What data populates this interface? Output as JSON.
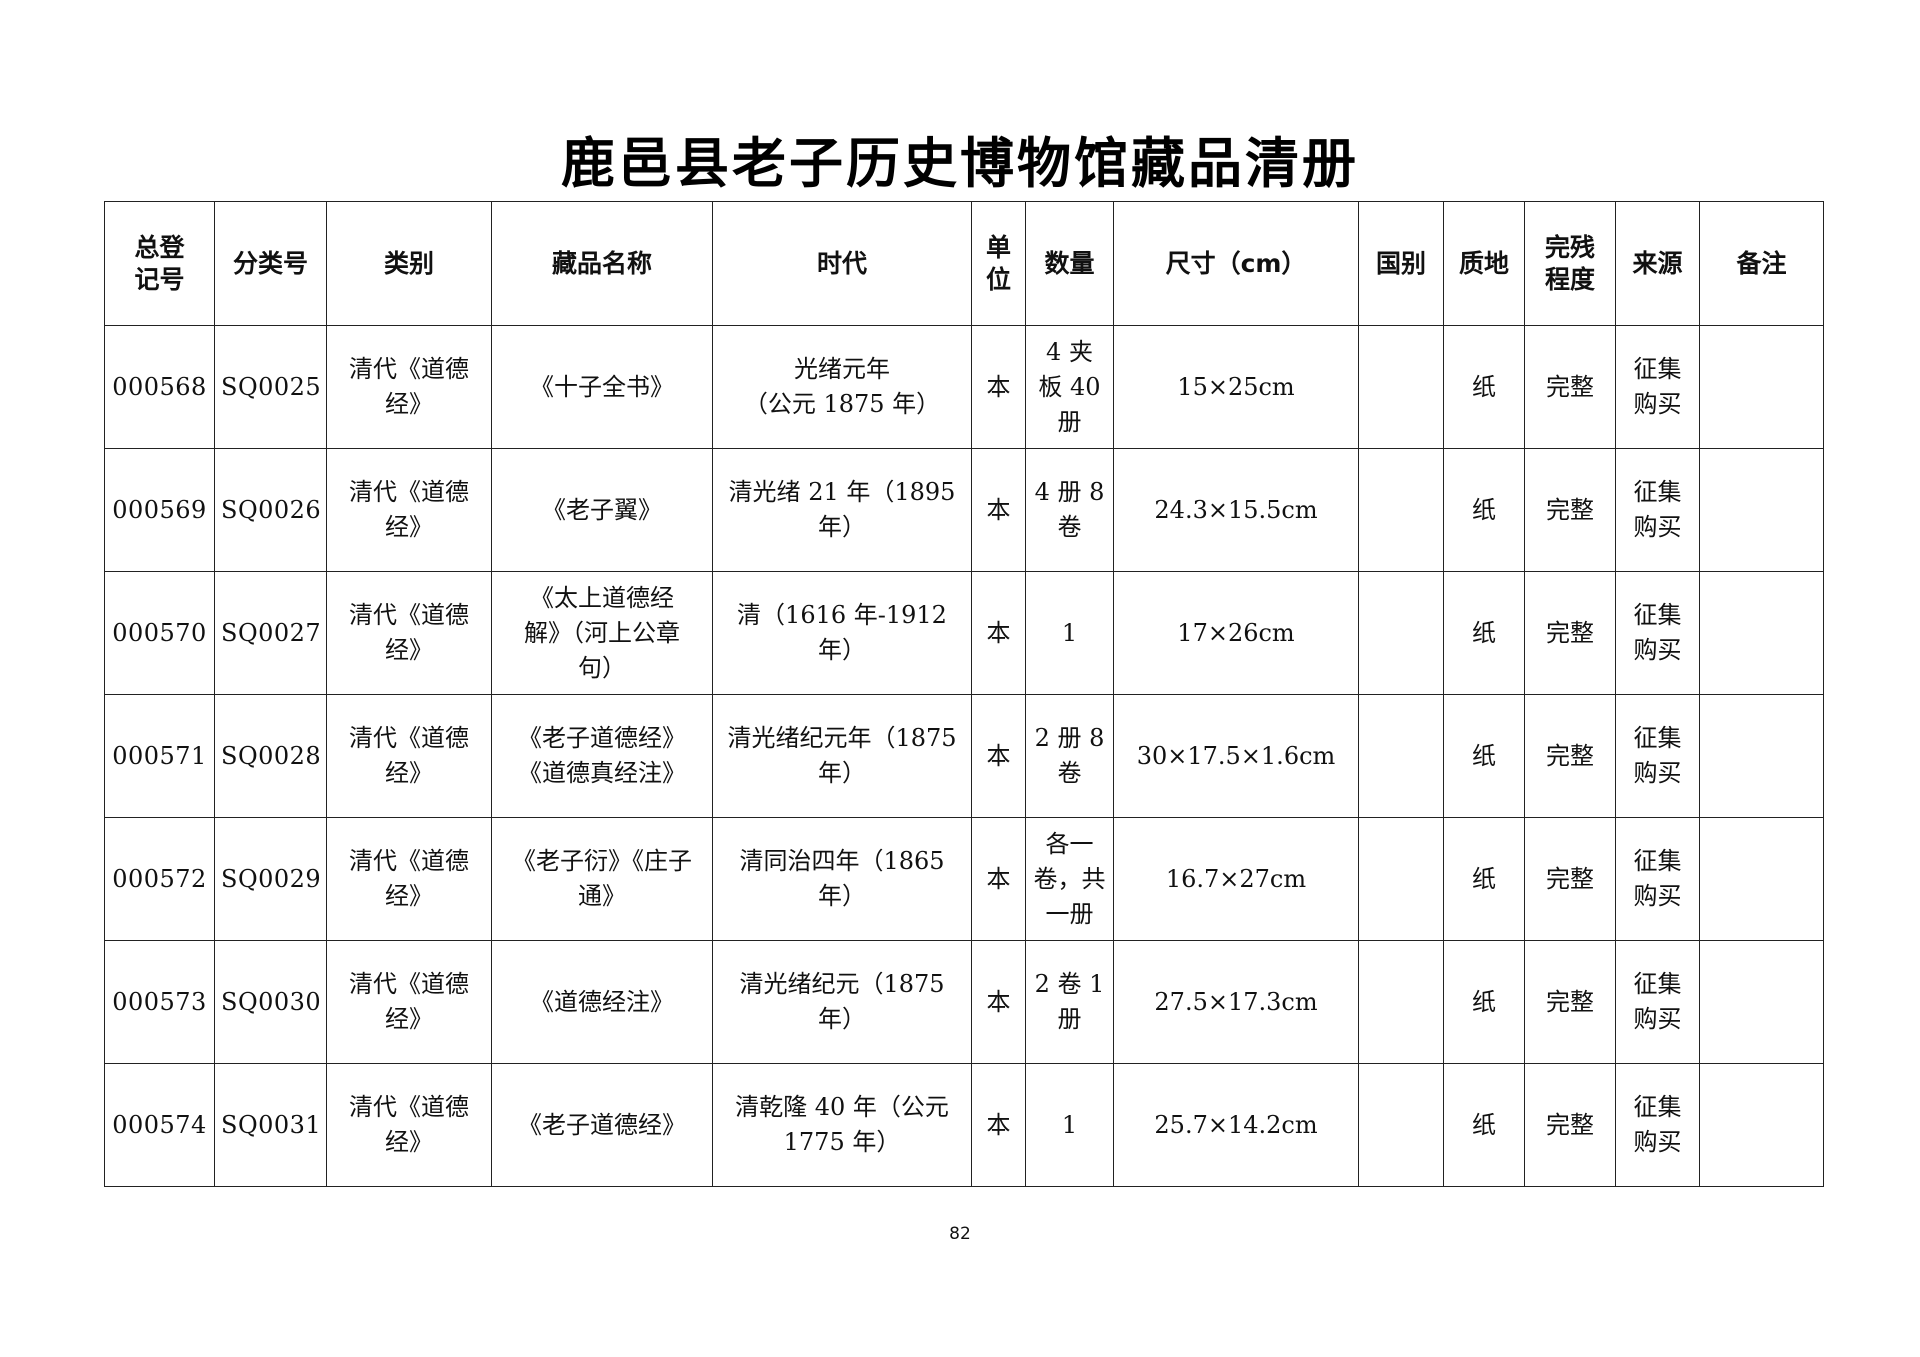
{
  "title": "鹿邑县老子历史博物馆藏品清册",
  "columns": [
    "总登\n记号",
    "分类号",
    "类别",
    "藏品名称",
    "时代",
    "单\n位",
    "数量",
    "尺寸（cm）",
    "国别",
    "质地",
    "完残\n程度",
    "来源",
    "备注"
  ],
  "rows": [
    [
      "000568",
      "SQ0025",
      "清代《道德经》",
      "《十子全书》",
      "光绪元年\n（公元 1875 年）",
      "本",
      "4 夹\n板 40\n册",
      "15×25cm",
      "",
      "纸",
      "完整",
      "征集\n购买",
      ""
    ],
    [
      "000569",
      "SQ0026",
      "清代《道德经》",
      "《老子翼》",
      "清光绪 21 年（1895\n年）",
      "本",
      "4 册 8\n卷",
      "24.3×15.5cm",
      "",
      "纸",
      "完整",
      "征集\n购买",
      ""
    ],
    [
      "000570",
      "SQ0027",
      "清代《道德经》",
      "《太上道德经\n解》（河上公章\n句）",
      "清（1616 年-1912\n年）",
      "本",
      "1",
      "17×26cm",
      "",
      "纸",
      "完整",
      "征集\n购买",
      ""
    ],
    [
      "000571",
      "SQ0028",
      "清代《道德经》",
      "《老子道德经》\n《道德真经注》",
      "清光绪纪元年（1875\n年）",
      "本",
      "2 册 8\n卷",
      "30×17.5×1.6cm",
      "",
      "纸",
      "完整",
      "征集\n购买",
      ""
    ],
    [
      "000572",
      "SQ0029",
      "清代《道德经》",
      "《老子衍》《庄子\n通》",
      "清同治四年（1865\n年）",
      "本",
      "各一\n卷，共\n一册",
      "16.7×27cm",
      "",
      "纸",
      "完整",
      "征集\n购买",
      ""
    ],
    [
      "000573",
      "SQ0030",
      "清代《道德经》",
      "《道德经注》",
      "清光绪纪元（1875\n年）",
      "本",
      "2 卷 1\n册",
      "27.5×17.3cm",
      "",
      "纸",
      "完整",
      "征集\n购买",
      ""
    ],
    [
      "000574",
      "SQ0031",
      "清代《道德经》",
      "《老子道德经》",
      "清乾隆 40 年（公元\n1775 年）",
      "本",
      "1",
      "25.7×14.2cm",
      "",
      "纸",
      "完整",
      "征集\n购买",
      ""
    ]
  ],
  "page_number": "82"
}
